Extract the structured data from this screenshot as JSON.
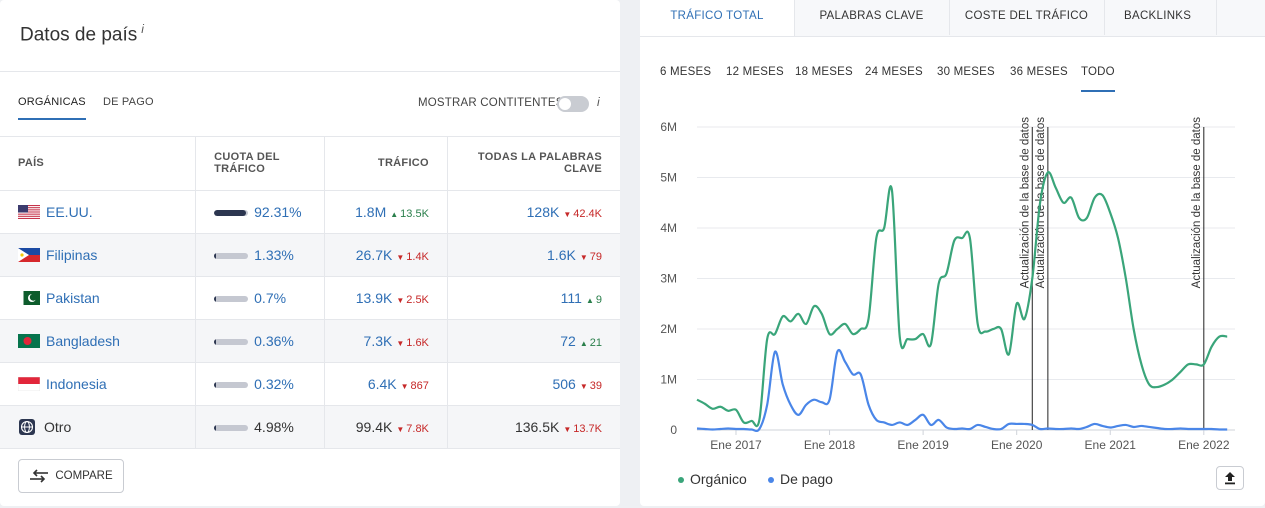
{
  "left": {
    "title": "Datos de país",
    "info_mark": "i",
    "tabs": [
      {
        "label": "ORGÁNICAS"
      },
      {
        "label": "DE PAGO"
      }
    ],
    "toggle_label": "MOSTRAR CONTITENTES",
    "columns": [
      "PAÍS",
      "CUOTA DEL TRÁFICO",
      "TRÁFICO",
      "TODAS LA PALABRAS CLAVE"
    ],
    "rows": [
      {
        "country": "EE.UU.",
        "share": "92.31%",
        "share_frac": 0.9231,
        "traffic": "1.8M",
        "traffic_delta": "13.5K",
        "traffic_dir": "up",
        "keywords": "128K",
        "kw_delta": "42.4K",
        "kw_dir": "down"
      },
      {
        "country": "Filipinas",
        "share": "1.33%",
        "share_frac": 0.0133,
        "traffic": "26.7K",
        "traffic_delta": "1.4K",
        "traffic_dir": "down",
        "keywords": "1.6K",
        "kw_delta": "79",
        "kw_dir": "down"
      },
      {
        "country": "Pakistan",
        "share": "0.7%",
        "share_frac": 0.007,
        "traffic": "13.9K",
        "traffic_delta": "2.5K",
        "traffic_dir": "down",
        "keywords": "111",
        "kw_delta": "9",
        "kw_dir": "up"
      },
      {
        "country": "Bangladesh",
        "share": "0.36%",
        "share_frac": 0.0036,
        "traffic": "7.3K",
        "traffic_delta": "1.6K",
        "traffic_dir": "down",
        "keywords": "72",
        "kw_delta": "21",
        "kw_dir": "up"
      },
      {
        "country": "Indonesia",
        "share": "0.32%",
        "share_frac": 0.0032,
        "traffic": "6.4K",
        "traffic_delta": "867",
        "traffic_dir": "down",
        "keywords": "506",
        "kw_delta": "39",
        "kw_dir": "down"
      },
      {
        "country": "Otro",
        "share": "4.98%",
        "share_frac": 0.0498,
        "traffic": "99.4K",
        "traffic_delta": "7.8K",
        "traffic_dir": "down",
        "keywords": "136.5K",
        "kw_delta": "13.7K",
        "kw_dir": "down"
      }
    ],
    "compare_label": "COMPARE"
  },
  "right": {
    "tabs": [
      {
        "label": "TRÁFICO TOTAL"
      },
      {
        "label": "PALABRAS CLAVE"
      },
      {
        "label": "COSTE DEL TRÁFICO"
      },
      {
        "label": "BACKLINKS"
      }
    ],
    "ranges": [
      {
        "label": "6 MESES"
      },
      {
        "label": "12 MESES"
      },
      {
        "label": "18 MESES"
      },
      {
        "label": "24 MESES"
      },
      {
        "label": "30 MESES"
      },
      {
        "label": "36 MESES"
      },
      {
        "label": "TODO"
      }
    ],
    "legend": [
      {
        "label": "Orgánico",
        "color": "#3aa57a"
      },
      {
        "label": "De pago",
        "color": "#4a86e8"
      }
    ]
  },
  "chart_data": {
    "type": "line",
    "ylim": [
      0,
      6000000
    ],
    "y_ticks": [
      "0",
      "1M",
      "2M",
      "3M",
      "4M",
      "5M",
      "6M"
    ],
    "x_tick_labels": [
      "Ene 2017",
      "Ene 2018",
      "Ene 2019",
      "Ene 2020",
      "Ene 2021",
      "Ene 2022"
    ],
    "xlim": [
      "2016-08",
      "2022-05"
    ],
    "annotations": [
      {
        "date": "2020-03",
        "text": "Actualización de la base de datos"
      },
      {
        "date": "2020-05",
        "text": "Actualización de la base de datos"
      },
      {
        "date": "2022-01",
        "text": "Actualización de la base de datos"
      }
    ],
    "series": [
      {
        "name": "Orgánico",
        "color": "#3aa57a",
        "points": [
          [
            "2016-08",
            600000
          ],
          [
            "2016-09",
            520000
          ],
          [
            "2016-10",
            420000
          ],
          [
            "2016-11",
            460000
          ],
          [
            "2016-12",
            380000
          ],
          [
            "2017-01",
            400000
          ],
          [
            "2017-02",
            150000
          ],
          [
            "2017-03",
            180000
          ],
          [
            "2017-04",
            200000
          ],
          [
            "2017-05",
            1800000
          ],
          [
            "2017-06",
            1900000
          ],
          [
            "2017-07",
            2250000
          ],
          [
            "2017-08",
            2150000
          ],
          [
            "2017-09",
            2300000
          ],
          [
            "2017-10",
            2100000
          ],
          [
            "2017-11",
            2450000
          ],
          [
            "2017-12",
            2300000
          ],
          [
            "2018-01",
            1900000
          ],
          [
            "2018-02",
            2000000
          ],
          [
            "2018-03",
            2100000
          ],
          [
            "2018-04",
            1900000
          ],
          [
            "2018-05",
            2000000
          ],
          [
            "2018-06",
            2200000
          ],
          [
            "2018-07",
            3800000
          ],
          [
            "2018-08",
            4000000
          ],
          [
            "2018-09",
            4750000
          ],
          [
            "2018-10",
            1850000
          ],
          [
            "2018-11",
            1800000
          ],
          [
            "2018-12",
            1800000
          ],
          [
            "2019-01",
            1900000
          ],
          [
            "2019-02",
            1700000
          ],
          [
            "2019-03",
            2900000
          ],
          [
            "2019-04",
            3100000
          ],
          [
            "2019-05",
            3750000
          ],
          [
            "2019-06",
            3800000
          ],
          [
            "2019-07",
            3800000
          ],
          [
            "2019-08",
            2100000
          ],
          [
            "2019-09",
            1950000
          ],
          [
            "2019-10",
            2000000
          ],
          [
            "2019-11",
            2000000
          ],
          [
            "2019-12",
            1500000
          ],
          [
            "2020-01",
            2500000
          ],
          [
            "2020-02",
            2200000
          ],
          [
            "2020-03",
            3000000
          ],
          [
            "2020-04",
            4500000
          ],
          [
            "2020-05",
            5100000
          ],
          [
            "2020-06",
            4800000
          ],
          [
            "2020-07",
            4500000
          ],
          [
            "2020-08",
            4600000
          ],
          [
            "2020-09",
            4200000
          ],
          [
            "2020-10",
            4200000
          ],
          [
            "2020-11",
            4600000
          ],
          [
            "2020-12",
            4650000
          ],
          [
            "2021-01",
            4300000
          ],
          [
            "2021-02",
            3800000
          ],
          [
            "2021-03",
            3000000
          ],
          [
            "2021-04",
            2000000
          ],
          [
            "2021-05",
            1300000
          ],
          [
            "2021-06",
            900000
          ],
          [
            "2021-07",
            850000
          ],
          [
            "2021-08",
            900000
          ],
          [
            "2021-09",
            1000000
          ],
          [
            "2021-10",
            1150000
          ],
          [
            "2021-11",
            1300000
          ],
          [
            "2021-12",
            1300000
          ],
          [
            "2022-01",
            1300000
          ],
          [
            "2022-02",
            1650000
          ],
          [
            "2022-03",
            1850000
          ],
          [
            "2022-04",
            1850000
          ]
        ]
      },
      {
        "name": "De pago",
        "color": "#4a86e8",
        "points": [
          [
            "2016-08",
            30000
          ],
          [
            "2016-09",
            20000
          ],
          [
            "2016-10",
            10000
          ],
          [
            "2016-11",
            20000
          ],
          [
            "2016-12",
            30000
          ],
          [
            "2017-01",
            20000
          ],
          [
            "2017-02",
            20000
          ],
          [
            "2017-03",
            10000
          ],
          [
            "2017-04",
            20000
          ],
          [
            "2017-05",
            500000
          ],
          [
            "2017-06",
            1550000
          ],
          [
            "2017-07",
            900000
          ],
          [
            "2017-08",
            500000
          ],
          [
            "2017-09",
            300000
          ],
          [
            "2017-10",
            500000
          ],
          [
            "2017-11",
            600000
          ],
          [
            "2017-12",
            550000
          ],
          [
            "2018-01",
            600000
          ],
          [
            "2018-02",
            1550000
          ],
          [
            "2018-03",
            1350000
          ],
          [
            "2018-04",
            1100000
          ],
          [
            "2018-05",
            1100000
          ],
          [
            "2018-06",
            500000
          ],
          [
            "2018-07",
            200000
          ],
          [
            "2018-08",
            150000
          ],
          [
            "2018-09",
            100000
          ],
          [
            "2018-10",
            150000
          ],
          [
            "2018-11",
            100000
          ],
          [
            "2018-12",
            200000
          ],
          [
            "2019-01",
            300000
          ],
          [
            "2019-02",
            100000
          ],
          [
            "2019-03",
            200000
          ],
          [
            "2019-04",
            50000
          ],
          [
            "2019-05",
            20000
          ],
          [
            "2019-06",
            30000
          ],
          [
            "2019-07",
            20000
          ],
          [
            "2019-08",
            100000
          ],
          [
            "2019-09",
            60000
          ],
          [
            "2019-10",
            20000
          ],
          [
            "2019-11",
            20000
          ],
          [
            "2019-12",
            120000
          ],
          [
            "2020-01",
            120000
          ],
          [
            "2020-02",
            120000
          ],
          [
            "2020-03",
            100000
          ],
          [
            "2020-04",
            20000
          ],
          [
            "2020-05",
            30000
          ],
          [
            "2020-06",
            20000
          ],
          [
            "2020-07",
            20000
          ],
          [
            "2020-08",
            30000
          ],
          [
            "2020-09",
            20000
          ],
          [
            "2020-10",
            60000
          ],
          [
            "2020-11",
            120000
          ],
          [
            "2020-12",
            80000
          ],
          [
            "2021-01",
            50000
          ],
          [
            "2021-02",
            80000
          ],
          [
            "2021-03",
            100000
          ],
          [
            "2021-04",
            60000
          ],
          [
            "2021-05",
            80000
          ],
          [
            "2021-06",
            60000
          ],
          [
            "2021-07",
            40000
          ],
          [
            "2021-08",
            20000
          ],
          [
            "2021-09",
            20000
          ],
          [
            "2021-10",
            30000
          ],
          [
            "2021-11",
            20000
          ],
          [
            "2021-12",
            20000
          ],
          [
            "2022-01",
            20000
          ],
          [
            "2022-02",
            20000
          ],
          [
            "2022-03",
            10000
          ],
          [
            "2022-04",
            10000
          ]
        ]
      }
    ]
  }
}
